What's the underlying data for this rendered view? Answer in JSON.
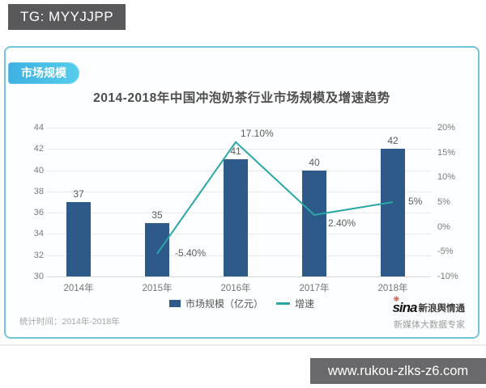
{
  "overlay": {
    "tg_label": "TG: MYYJJPP",
    "url_label": "www.rukou-zlks-z6.com"
  },
  "card": {
    "badge": "市场规模",
    "footnote": "统计时间：2014年-2018年",
    "brand": {
      "logo_text": "sina",
      "logo_suffix": "新浪舆情通",
      "tagline": "新媒体大数据专家"
    }
  },
  "icons": {
    "sina_flower": "❋"
  },
  "colors": {
    "bar": "#2d5a88",
    "line": "#29a6a6",
    "card_border": "#72c4da",
    "badge_blue": "#3db0e2",
    "watermark_gray": "#59595b"
  },
  "chart_data": {
    "type": "bar",
    "title": "2014-2018年中国冲泡奶茶行业市场规模及增速趋势",
    "categories": [
      "2014年",
      "2015年",
      "2016年",
      "2017年",
      "2018年"
    ],
    "series": [
      {
        "name": "市场规模（亿元）",
        "type": "bar",
        "axis": "left",
        "color": "#2d5a88",
        "values": [
          37,
          35,
          41,
          40,
          42
        ]
      },
      {
        "name": "增速",
        "type": "line",
        "axis": "right",
        "color": "#29a6a6",
        "values": [
          null,
          -5.4,
          17.1,
          2.4,
          5
        ],
        "point_labels": [
          "",
          "-5.40%",
          "17.10%",
          "2.40%",
          "5%"
        ]
      }
    ],
    "left_axis": {
      "min": 30,
      "max": 44,
      "ticks": [
        "44",
        "42",
        "40",
        "38",
        "36",
        "34",
        "32",
        "30"
      ]
    },
    "right_axis": {
      "min": -10,
      "max": 20,
      "ticks": [
        "20%",
        "15%",
        "10%",
        "5%",
        "0%",
        "-5%",
        "-10%"
      ]
    },
    "grid": true,
    "legend_position": "bottom"
  }
}
